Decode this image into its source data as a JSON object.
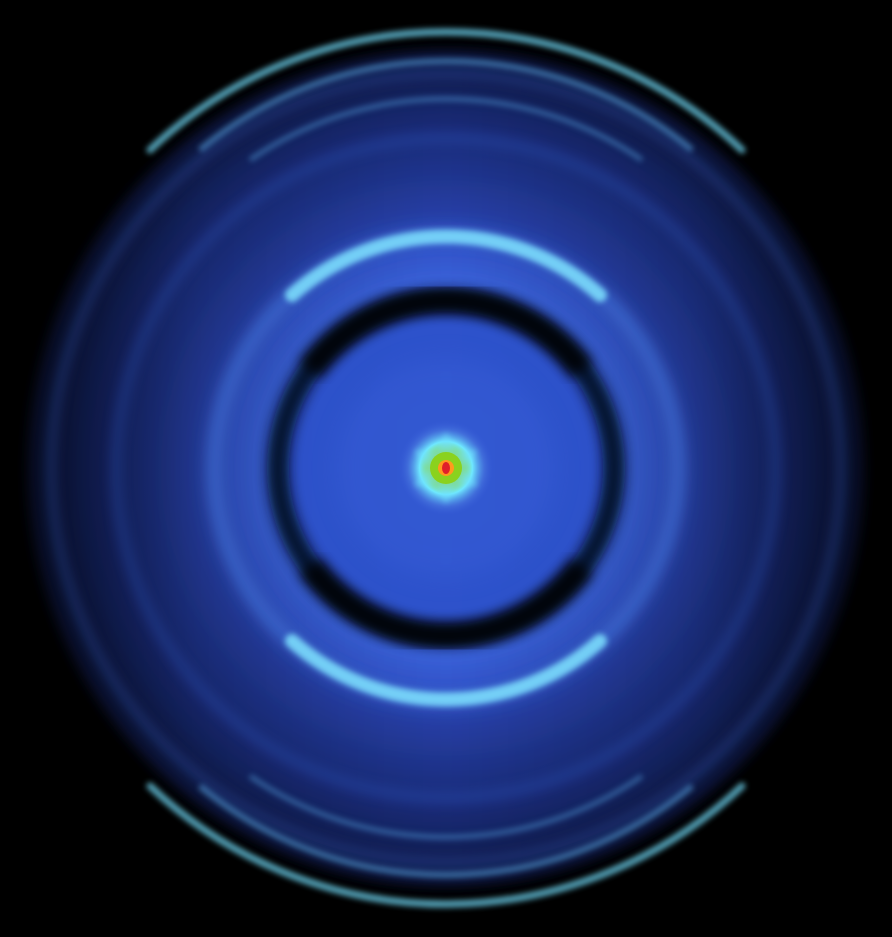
{
  "image": {
    "description_free": true,
    "palette": {
      "background": "#000000",
      "disk_dark": "#1a2a8a",
      "disk_mid": "#2f4fc8",
      "ring_bright": "#4fd2f0",
      "ring_glow": "#8fe6ff",
      "dark_ring": "#05081a",
      "center_green": "#7cd21e",
      "center_orange": "#ff8a1e",
      "center_red": "#e0202a",
      "center_cyan": "#7fe8ff"
    }
  }
}
